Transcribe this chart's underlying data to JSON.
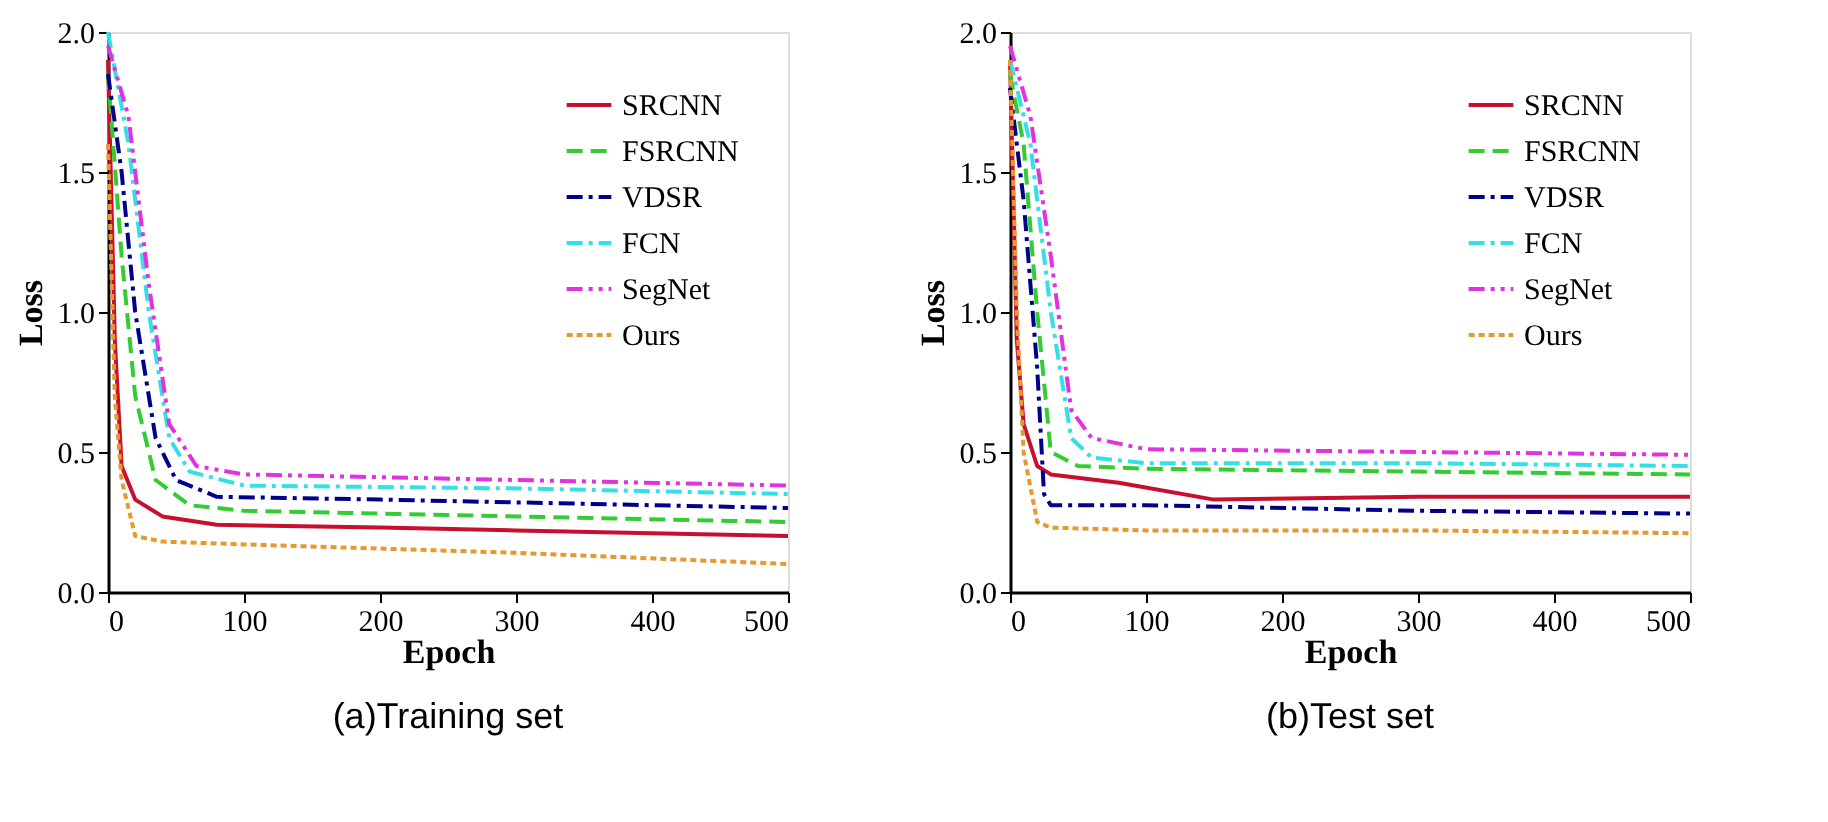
{
  "chart_data": [
    {
      "type": "line",
      "title": "(a)Training set",
      "xlabel": "Epoch",
      "ylabel": "Loss",
      "xlim": [
        0,
        500
      ],
      "ylim": [
        0,
        2.0
      ],
      "xticks": [
        0,
        100,
        200,
        300,
        400,
        500
      ],
      "yticks": [
        {
          "value": 0,
          "label": "0.0"
        },
        {
          "value": 0.5,
          "label": "0.5"
        },
        {
          "value": 1,
          "label": "1.0"
        },
        {
          "value": 1.5,
          "label": "1.5"
        },
        {
          "value": 2,
          "label": "2.0"
        }
      ],
      "grid": false,
      "legend": "top right",
      "series": [
        {
          "name": "SRCNN",
          "color": "#c8102e",
          "line_style": "solid",
          "x": [
            0,
            5,
            10,
            20,
            40,
            80,
            200,
            300,
            400,
            500
          ],
          "values": [
            1.9,
            0.9,
            0.45,
            0.33,
            0.27,
            0.24,
            0.23,
            0.22,
            0.21,
            0.2
          ]
        },
        {
          "name": "FSRCNN",
          "color": "#33cc33",
          "line_style": "dashed",
          "x": [
            0,
            10,
            20,
            35,
            60,
            100,
            300,
            500
          ],
          "values": [
            1.85,
            1.2,
            0.7,
            0.4,
            0.31,
            0.29,
            0.27,
            0.25
          ]
        },
        {
          "name": "VDSR",
          "color": "#00008b",
          "line_style": "dashdot",
          "x": [
            0,
            10,
            20,
            35,
            50,
            80,
            200,
            400,
            500
          ],
          "values": [
            1.85,
            1.5,
            1.0,
            0.55,
            0.4,
            0.34,
            0.33,
            0.31,
            0.3
          ]
        },
        {
          "name": "FCN",
          "color": "#33e0e6",
          "line_style": "dashdot",
          "x": [
            0,
            15,
            30,
            45,
            60,
            100,
            300,
            500
          ],
          "values": [
            2.0,
            1.6,
            1.0,
            0.55,
            0.43,
            0.38,
            0.37,
            0.35
          ]
        },
        {
          "name": "SegNet",
          "color": "#e033e0",
          "line_style": "dashdotdot",
          "x": [
            0,
            15,
            30,
            45,
            65,
            100,
            300,
            500
          ],
          "values": [
            1.95,
            1.7,
            1.1,
            0.6,
            0.45,
            0.42,
            0.4,
            0.38
          ]
        },
        {
          "name": "Ours",
          "color": "#e6992e",
          "line_style": "dotted",
          "x": [
            0,
            5,
            10,
            20,
            40,
            100,
            300,
            500
          ],
          "values": [
            1.6,
            0.7,
            0.4,
            0.2,
            0.18,
            0.17,
            0.14,
            0.1
          ]
        }
      ]
    },
    {
      "type": "line",
      "title": "(b)Test set",
      "xlabel": "Epoch",
      "ylabel": "Loss",
      "xlim": [
        0,
        500
      ],
      "ylim": [
        0,
        2.0
      ],
      "xticks": [
        0,
        100,
        200,
        300,
        400,
        500
      ],
      "yticks": [
        {
          "value": 0,
          "label": "0.0"
        },
        {
          "value": 0.5,
          "label": "0.5"
        },
        {
          "value": 1,
          "label": "1.0"
        },
        {
          "value": 1.5,
          "label": "1.5"
        },
        {
          "value": 2,
          "label": "2.0"
        }
      ],
      "grid": false,
      "legend": "top right",
      "series": [
        {
          "name": "SRCNN",
          "color": "#c8102e",
          "line_style": "solid",
          "x": [
            0,
            5,
            10,
            20,
            30,
            80,
            150,
            300,
            500
          ],
          "values": [
            1.9,
            0.9,
            0.6,
            0.45,
            0.42,
            0.39,
            0.33,
            0.34,
            0.34
          ]
        },
        {
          "name": "FSRCNN",
          "color": "#33cc33",
          "line_style": "dashed",
          "x": [
            0,
            10,
            20,
            30,
            50,
            100,
            300,
            500
          ],
          "values": [
            1.85,
            1.6,
            1.0,
            0.5,
            0.45,
            0.44,
            0.43,
            0.42
          ]
        },
        {
          "name": "VDSR",
          "color": "#00008b",
          "line_style": "dashdot",
          "x": [
            0,
            10,
            20,
            25,
            30,
            100,
            300,
            500
          ],
          "values": [
            1.8,
            1.4,
            0.8,
            0.35,
            0.31,
            0.31,
            0.29,
            0.28
          ]
        },
        {
          "name": "FCN",
          "color": "#33e0e6",
          "line_style": "dashdot",
          "x": [
            0,
            15,
            30,
            45,
            60,
            100,
            300,
            500
          ],
          "values": [
            1.9,
            1.6,
            1.0,
            0.55,
            0.48,
            0.46,
            0.46,
            0.45
          ]
        },
        {
          "name": "SegNet",
          "color": "#e033e0",
          "line_style": "dashdotdot",
          "x": [
            0,
            15,
            30,
            45,
            60,
            100,
            300,
            500
          ],
          "values": [
            1.95,
            1.7,
            1.2,
            0.65,
            0.55,
            0.51,
            0.5,
            0.49
          ]
        },
        {
          "name": "Ours",
          "color": "#e6992e",
          "line_style": "dotted",
          "x": [
            0,
            5,
            10,
            20,
            30,
            100,
            300,
            500
          ],
          "values": [
            1.9,
            1.0,
            0.5,
            0.25,
            0.23,
            0.22,
            0.22,
            0.21
          ]
        }
      ]
    }
  ]
}
